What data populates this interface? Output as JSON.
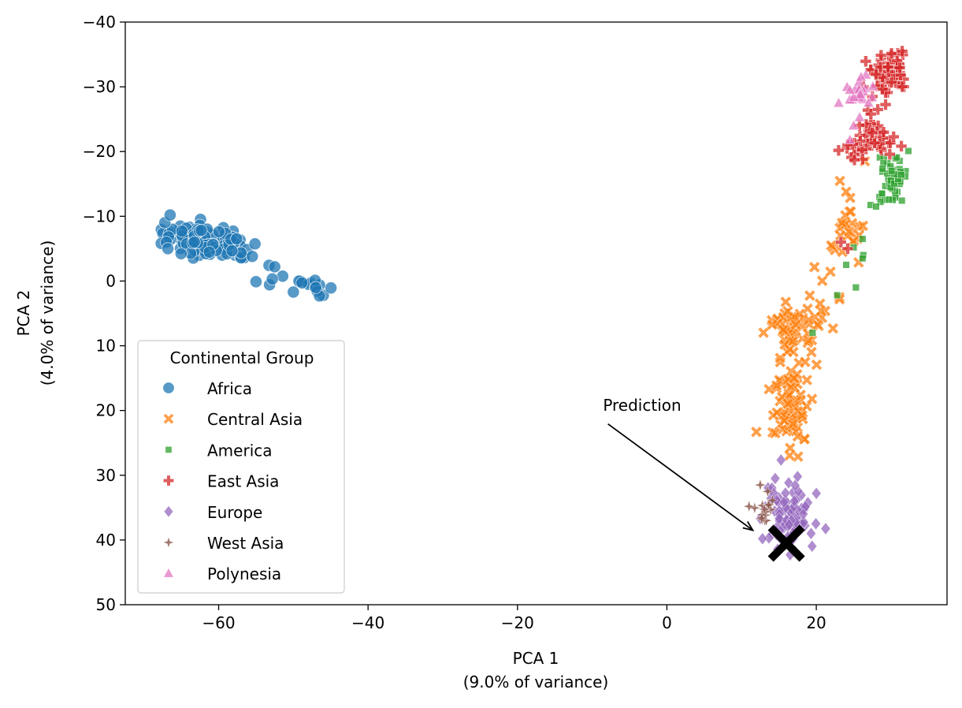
{
  "chart_data": {
    "type": "scatter",
    "title": "",
    "xlabel_line1": "PCA 1",
    "xlabel_line2": "(9.0% of variance)",
    "ylabel_line1": "PCA 2",
    "ylabel_line2": "(4.0% of variance)",
    "xlim": [
      -72.5,
      37.5
    ],
    "ylim": [
      50,
      -40
    ],
    "y_inverted": true,
    "xticks": [
      -60,
      -40,
      -20,
      0,
      20
    ],
    "yticks": [
      -40,
      -30,
      -20,
      -10,
      0,
      10,
      20,
      30,
      40,
      50
    ],
    "grid": false,
    "legend": {
      "title": "Continental Group",
      "placement": "lower-left"
    },
    "annotation": {
      "text": "Prediction",
      "point": [
        11.5,
        38.5
      ],
      "text_pos": [
        -10,
        20
      ]
    },
    "prediction": {
      "x": 16,
      "y": 40.5,
      "marker": "x-thick",
      "color": "#000000"
    },
    "series": [
      {
        "name": "Africa",
        "marker": "circle",
        "color": "#1f77b4",
        "clusters": [
          {
            "cx": -61.5,
            "cy": -6.2,
            "sx": 3.0,
            "sy": 1.2,
            "n": 110,
            "tilt": 0.18
          },
          {
            "cx": -49.5,
            "cy": 0.2,
            "sx": 2.4,
            "sy": 1.2,
            "n": 16,
            "tilt": 0.25
          }
        ],
        "points": [
          [
            -66.5,
            -10.2
          ],
          [
            -67,
            -6
          ],
          [
            -66.8,
            -5
          ],
          [
            -55.5,
            -3.8
          ],
          [
            -46.5,
            2.3
          ],
          [
            -47,
            1
          ],
          [
            -50,
            1.7
          ],
          [
            -52.5,
            -2.2
          ]
        ]
      },
      {
        "name": "Central Asia",
        "marker": "x",
        "color": "#ff7f0e",
        "clusters": [
          {
            "cx": 16.5,
            "cy": 19.5,
            "sx": 1.3,
            "sy": 3.3,
            "n": 80,
            "tilt": 0
          },
          {
            "cx": 16.7,
            "cy": 7.5,
            "sx": 1.3,
            "sy": 2.0,
            "n": 55,
            "tilt": 0
          },
          {
            "cx": 24.5,
            "cy": -8.0,
            "sx": 1.3,
            "sy": 2.2,
            "n": 25,
            "tilt": 0
          },
          {
            "cx": 21.0,
            "cy": 2.5,
            "sx": 1.3,
            "sy": 2.2,
            "n": 12,
            "tilt": 0
          }
        ],
        "points": [
          [
            16.5,
            25.8
          ],
          [
            14.5,
            23.5
          ],
          [
            17.5,
            24.0
          ],
          [
            19.0,
            6.0
          ],
          [
            22.0,
            -5.5
          ],
          [
            26.5,
            -18.5
          ],
          [
            23.5,
            -4.5
          ],
          [
            20.5,
            3.5
          ],
          [
            18.5,
            12.5
          ],
          [
            17.0,
            15.0
          ]
        ]
      },
      {
        "name": "America",
        "marker": "square",
        "color": "#2ca02c",
        "clusters": [
          {
            "cx": 30.3,
            "cy": -16.5,
            "sx": 0.9,
            "sy": 1.4,
            "n": 45,
            "tilt": 0
          },
          {
            "cx": 29.5,
            "cy": -12.5,
            "sx": 1.6,
            "sy": 0.9,
            "n": 10,
            "tilt": 0
          }
        ],
        "points": [
          [
            26.2,
            -6.5
          ],
          [
            26.3,
            -4
          ],
          [
            25,
            -5.2
          ],
          [
            24.0,
            -2.5
          ],
          [
            25.3,
            1
          ],
          [
            22.8,
            2.2
          ],
          [
            19.5,
            8
          ],
          [
            26.2,
            -3.5
          ],
          [
            28.0,
            -11.5
          ]
        ]
      },
      {
        "name": "East Asia",
        "marker": "plus",
        "color": "#d62728",
        "clusters": [
          {
            "cx": 29.8,
            "cy": -32.5,
            "sx": 1.2,
            "sy": 1.6,
            "n": 75,
            "tilt": 0
          },
          {
            "cx": 27.5,
            "cy": -25.0,
            "sx": 0.8,
            "sy": 1.4,
            "n": 15,
            "tilt": 0
          },
          {
            "cx": 28.5,
            "cy": -21.5,
            "sx": 1.2,
            "sy": 1.0,
            "n": 30,
            "tilt": 0
          },
          {
            "cx": 25.0,
            "cy": -20.0,
            "sx": 0.9,
            "sy": 0.9,
            "n": 15,
            "tilt": 0
          }
        ],
        "points": [
          [
            23.3,
            -6
          ],
          [
            24.2,
            -5
          ],
          [
            26.3,
            -30
          ],
          [
            27.5,
            -28.5
          ],
          [
            31.5,
            -35.5
          ]
        ]
      },
      {
        "name": "Europe",
        "marker": "diamond",
        "color": "#9467bd",
        "clusters": [
          {
            "cx": 16.2,
            "cy": 36.5,
            "sx": 1.6,
            "sy": 2.2,
            "n": 95,
            "tilt": 0
          }
        ],
        "points": [
          [
            14.5,
            30.5
          ],
          [
            17.5,
            30.2
          ],
          [
            12.8,
            39.8
          ],
          [
            19.3,
            39.0
          ],
          [
            16.5,
            42.3
          ]
        ]
      },
      {
        "name": "West Asia",
        "marker": "star4",
        "color": "#8c564b",
        "clusters": [
          {
            "cx": 13.0,
            "cy": 35.0,
            "sx": 0.6,
            "sy": 1.2,
            "n": 14,
            "tilt": 0
          }
        ],
        "points": [
          [
            11.0,
            34.8
          ],
          [
            12.5,
            31.5
          ],
          [
            13.5,
            32.5
          ]
        ]
      },
      {
        "name": "Polynesia",
        "marker": "triangle",
        "color": "#e377c2",
        "clusters": [
          {
            "cx": 26.0,
            "cy": -29.5,
            "sx": 0.9,
            "sy": 1.3,
            "n": 22,
            "tilt": 0
          }
        ],
        "points": [
          [
            23.0,
            -27.5
          ],
          [
            24.5,
            -21.8
          ],
          [
            25.8,
            -25.3
          ],
          [
            25,
            -24
          ],
          [
            26.0,
            -31.5
          ],
          [
            27.0,
            -27.5
          ],
          [
            24.5,
            -29.5
          ]
        ]
      }
    ]
  }
}
